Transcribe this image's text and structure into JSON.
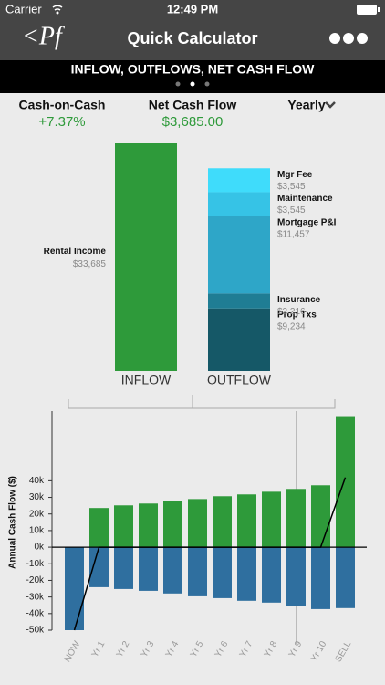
{
  "status_bar": {
    "carrier": "Carrier",
    "time": "12:49 PM"
  },
  "nav": {
    "logo": "<Pf",
    "title": "Quick Calculator"
  },
  "banner": "INFLOW, OUTFLOWS, NET CASH FLOW",
  "summary": [
    {
      "label": "Cash-on-Cash",
      "value": "+7.37%"
    },
    {
      "label": "Net Cash Flow",
      "value": "$3,685.00"
    }
  ],
  "period": "Yearly",
  "flow_chart": {
    "type": "stacked_bar",
    "categories": [
      "INFLOW",
      "OUTFLOW"
    ],
    "inflow": [
      {
        "name": "Rental Income",
        "value": 33685,
        "value_label": "$33,685",
        "color": "#2e9a3a"
      }
    ],
    "outflow": [
      {
        "name": "Prop Txs",
        "value": 9234,
        "value_label": "$9,234",
        "color": "#155867"
      },
      {
        "name": "Insurance",
        "value": 2216,
        "value_label": "$2,216",
        "color": "#1f7d94"
      },
      {
        "name": "Mortgage P&I",
        "value": 11457,
        "value_label": "$11,457",
        "color": "#2ea6c8"
      },
      {
        "name": "Maintenance",
        "value": 3545,
        "value_label": "$3,545",
        "color": "#36c3e6"
      },
      {
        "name": "Mgr Fee",
        "value": 3545,
        "value_label": "$3,545",
        "color": "#3fdcfb"
      }
    ]
  },
  "cash_flow_chart": {
    "type": "bar",
    "y_label": "Annual Cash Flow ($)",
    "categories": [
      "NOW",
      "Yr 1",
      "Yr 2",
      "Yr 3",
      "Yr 4",
      "Yr 5",
      "Yr 6",
      "Yr 7",
      "Yr 8",
      "Yr 9",
      "Yr 10",
      "SELL"
    ],
    "series": [
      {
        "color": "#2e9a3a",
        "values": [
          0,
          23600,
          25200,
          26300,
          27900,
          29000,
          30700,
          31800,
          33400,
          35100,
          37300,
          78400
        ]
      },
      {
        "color": "#2f6f9f",
        "values": [
          -50000,
          -24100,
          -25200,
          -26300,
          -27900,
          -29600,
          -30700,
          -32300,
          -33400,
          -35600,
          -37300,
          -36700
        ]
      },
      {
        "type": "line",
        "color": "#000000",
        "values": [
          -50000,
          0,
          0,
          0,
          0,
          0,
          0,
          0,
          0,
          0,
          0,
          42000
        ]
      }
    ],
    "ylim": [
      -50000,
      82000
    ],
    "yticks": [
      {
        "value": -50000,
        "label": "-50k"
      },
      {
        "value": -40000,
        "label": "-40k"
      },
      {
        "value": -30000,
        "label": "-30k"
      },
      {
        "value": -20000,
        "label": "-20k"
      },
      {
        "value": -10000,
        "label": "-10k"
      },
      {
        "value": 0,
        "label": "0k"
      },
      {
        "value": 10000,
        "label": "10k"
      },
      {
        "value": 20000,
        "label": "20k"
      },
      {
        "value": 30000,
        "label": "30k"
      },
      {
        "value": 40000,
        "label": "40k"
      }
    ],
    "selected_index": 9
  }
}
